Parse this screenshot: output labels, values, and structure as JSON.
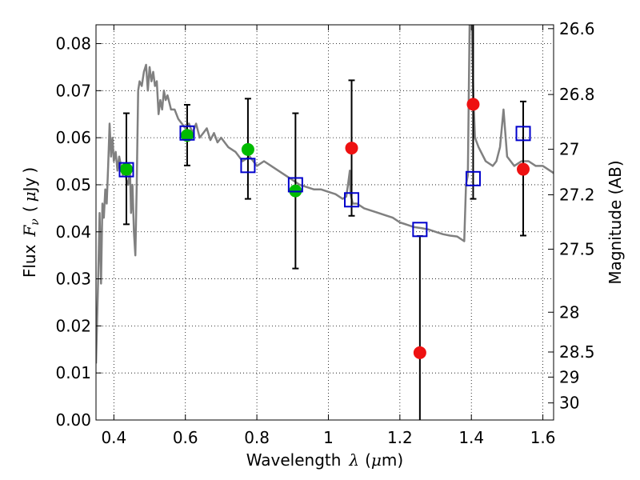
{
  "chart_data": {
    "type": "scatter",
    "title": "",
    "xlabel": {
      "prefix": "Wavelength",
      "symbol": "λ",
      "unit_open": "(",
      "unit_mu": "μ",
      "unit_rest": "m)"
    },
    "ylabel": {
      "prefix": "Flux",
      "symbol": "F",
      "subscript": "ν",
      "unit_open": "(",
      "unit_mu": "μ",
      "unit_rest": "Jy",
      "unit_close": ")"
    },
    "y2label": "Magnitude (AB)",
    "xlim": [
      0.35,
      1.63
    ],
    "ylim": [
      0.0,
      0.084
    ],
    "grid": true,
    "xticks": [
      {
        "value": 0.4,
        "label": "0.4"
      },
      {
        "value": 0.6,
        "label": "0.6"
      },
      {
        "value": 0.8,
        "label": "0.8"
      },
      {
        "value": 1.0,
        "label": "1"
      },
      {
        "value": 1.2,
        "label": "1.2"
      },
      {
        "value": 1.4,
        "label": "1.4"
      },
      {
        "value": 1.6,
        "label": "1.6"
      }
    ],
    "yticks": [
      {
        "value": 0.0,
        "label": "0.00"
      },
      {
        "value": 0.01,
        "label": "0.01"
      },
      {
        "value": 0.02,
        "label": "0.02"
      },
      {
        "value": 0.03,
        "label": "0.03"
      },
      {
        "value": 0.04,
        "label": "0.04"
      },
      {
        "value": 0.05,
        "label": "0.05"
      },
      {
        "value": 0.06,
        "label": "0.06"
      },
      {
        "value": 0.07,
        "label": "0.07"
      },
      {
        "value": 0.08,
        "label": "0.08"
      }
    ],
    "magticks": [
      {
        "value": 26.6,
        "label": "26.6"
      },
      {
        "value": 26.8,
        "label": "26.8"
      },
      {
        "value": 27.0,
        "label": "27"
      },
      {
        "value": 27.2,
        "label": "27.2"
      },
      {
        "value": 27.5,
        "label": "27.5"
      },
      {
        "value": 28.0,
        "label": "28"
      },
      {
        "value": 28.5,
        "label": "28.5"
      },
      {
        "value": 29.0,
        "label": "29"
      },
      {
        "value": 30.0,
        "label": "30"
      }
    ],
    "model_spectrum": {
      "color": "#808080",
      "points": [
        [
          0.35,
          0.012
        ],
        [
          0.356,
          0.03
        ],
        [
          0.36,
          0.044
        ],
        [
          0.364,
          0.029
        ],
        [
          0.368,
          0.046
        ],
        [
          0.372,
          0.043
        ],
        [
          0.376,
          0.049
        ],
        [
          0.38,
          0.046
        ],
        [
          0.384,
          0.054
        ],
        [
          0.388,
          0.063
        ],
        [
          0.392,
          0.056
        ],
        [
          0.396,
          0.06
        ],
        [
          0.4,
          0.055
        ],
        [
          0.405,
          0.057
        ],
        [
          0.41,
          0.053
        ],
        [
          0.415,
          0.056
        ],
        [
          0.42,
          0.054
        ],
        [
          0.425,
          0.052
        ],
        [
          0.43,
          0.054
        ],
        [
          0.435,
          0.051
        ],
        [
          0.44,
          0.05
        ],
        [
          0.445,
          0.053
        ],
        [
          0.448,
          0.044
        ],
        [
          0.452,
          0.05
        ],
        [
          0.456,
          0.04
        ],
        [
          0.46,
          0.035
        ],
        [
          0.464,
          0.05
        ],
        [
          0.468,
          0.07
        ],
        [
          0.472,
          0.072
        ],
        [
          0.478,
          0.071
        ],
        [
          0.484,
          0.074
        ],
        [
          0.49,
          0.0755
        ],
        [
          0.495,
          0.07
        ],
        [
          0.5,
          0.075
        ],
        [
          0.505,
          0.072
        ],
        [
          0.51,
          0.074
        ],
        [
          0.515,
          0.071
        ],
        [
          0.52,
          0.072
        ],
        [
          0.525,
          0.065
        ],
        [
          0.53,
          0.068
        ],
        [
          0.535,
          0.066
        ],
        [
          0.54,
          0.07
        ],
        [
          0.545,
          0.068
        ],
        [
          0.55,
          0.069
        ],
        [
          0.56,
          0.066
        ],
        [
          0.57,
          0.066
        ],
        [
          0.58,
          0.064
        ],
        [
          0.59,
          0.063
        ],
        [
          0.6,
          0.062
        ],
        [
          0.61,
          0.063
        ],
        [
          0.62,
          0.061
        ],
        [
          0.63,
          0.063
        ],
        [
          0.64,
          0.06
        ],
        [
          0.65,
          0.061
        ],
        [
          0.66,
          0.062
        ],
        [
          0.67,
          0.0595
        ],
        [
          0.68,
          0.061
        ],
        [
          0.69,
          0.059
        ],
        [
          0.7,
          0.06
        ],
        [
          0.72,
          0.058
        ],
        [
          0.74,
          0.057
        ],
        [
          0.76,
          0.055
        ],
        [
          0.78,
          0.056
        ],
        [
          0.8,
          0.054
        ],
        [
          0.82,
          0.055
        ],
        [
          0.84,
          0.054
        ],
        [
          0.86,
          0.053
        ],
        [
          0.88,
          0.052
        ],
        [
          0.9,
          0.051
        ],
        [
          0.92,
          0.05
        ],
        [
          0.94,
          0.0495
        ],
        [
          0.96,
          0.049
        ],
        [
          0.98,
          0.049
        ],
        [
          1.0,
          0.0485
        ],
        [
          1.02,
          0.048
        ],
        [
          1.04,
          0.047
        ],
        [
          1.05,
          0.0475
        ],
        [
          1.055,
          0.05
        ],
        [
          1.06,
          0.053
        ],
        [
          1.062,
          0.048
        ],
        [
          1.068,
          0.046
        ],
        [
          1.08,
          0.046
        ],
        [
          1.1,
          0.045
        ],
        [
          1.12,
          0.0445
        ],
        [
          1.14,
          0.044
        ],
        [
          1.16,
          0.0435
        ],
        [
          1.18,
          0.043
        ],
        [
          1.2,
          0.042
        ],
        [
          1.22,
          0.0415
        ],
        [
          1.24,
          0.041
        ],
        [
          1.26,
          0.0408
        ],
        [
          1.28,
          0.0405
        ],
        [
          1.3,
          0.04
        ],
        [
          1.32,
          0.0395
        ],
        [
          1.34,
          0.0392
        ],
        [
          1.36,
          0.039
        ],
        [
          1.38,
          0.038
        ],
        [
          1.385,
          0.05
        ],
        [
          1.39,
          0.052
        ],
        [
          1.395,
          0.084
        ],
        [
          1.4,
          0.09
        ],
        [
          1.405,
          0.07
        ],
        [
          1.41,
          0.06
        ],
        [
          1.42,
          0.058
        ],
        [
          1.44,
          0.055
        ],
        [
          1.46,
          0.054
        ],
        [
          1.47,
          0.055
        ],
        [
          1.48,
          0.058
        ],
        [
          1.49,
          0.066
        ],
        [
          1.5,
          0.056
        ],
        [
          1.52,
          0.054
        ],
        [
          1.54,
          0.055
        ],
        [
          1.56,
          0.055
        ],
        [
          1.58,
          0.054
        ],
        [
          1.6,
          0.054
        ],
        [
          1.62,
          0.053
        ],
        [
          1.63,
          0.0525
        ]
      ]
    },
    "series": [
      {
        "marker": "circle",
        "color": "#00bb00",
        "points": [
          {
            "x": 0.435,
            "y": 0.0533
          },
          {
            "x": 0.605,
            "y": 0.0605
          },
          {
            "x": 0.775,
            "y": 0.0575
          },
          {
            "x": 0.908,
            "y": 0.0487
          }
        ]
      },
      {
        "marker": "circle",
        "color": "#ee1111",
        "points": [
          {
            "x": 1.065,
            "y": 0.0578
          },
          {
            "x": 1.256,
            "y": 0.0143
          },
          {
            "x": 1.405,
            "y": 0.0671
          },
          {
            "x": 1.545,
            "y": 0.0533
          }
        ]
      },
      {
        "marker": "open-square",
        "color": "#0000cc",
        "points": [
          {
            "x": 0.435,
            "y": 0.0532
          },
          {
            "x": 0.605,
            "y": 0.061
          },
          {
            "x": 0.775,
            "y": 0.0541
          },
          {
            "x": 0.908,
            "y": 0.05
          },
          {
            "x": 1.065,
            "y": 0.0468
          },
          {
            "x": 1.256,
            "y": 0.0405
          },
          {
            "x": 1.405,
            "y": 0.0513
          },
          {
            "x": 1.545,
            "y": 0.0609
          }
        ]
      }
    ],
    "error_bars": {
      "color": "#000000",
      "items": [
        {
          "x": 0.435,
          "low": 0.0416,
          "high": 0.0652
        },
        {
          "x": 0.605,
          "low": 0.0541,
          "high": 0.067
        },
        {
          "x": 0.775,
          "low": 0.047,
          "high": 0.0683
        },
        {
          "x": 0.908,
          "low": 0.0322,
          "high": 0.0652
        },
        {
          "x": 1.065,
          "low": 0.0434,
          "high": 0.0722
        },
        {
          "x": 1.256,
          "low": 0.0,
          "high": 0.0391
        },
        {
          "x": 1.405,
          "low": 0.047,
          "high": 0.084
        },
        {
          "x": 1.545,
          "low": 0.0392,
          "high": 0.0677
        }
      ]
    }
  }
}
